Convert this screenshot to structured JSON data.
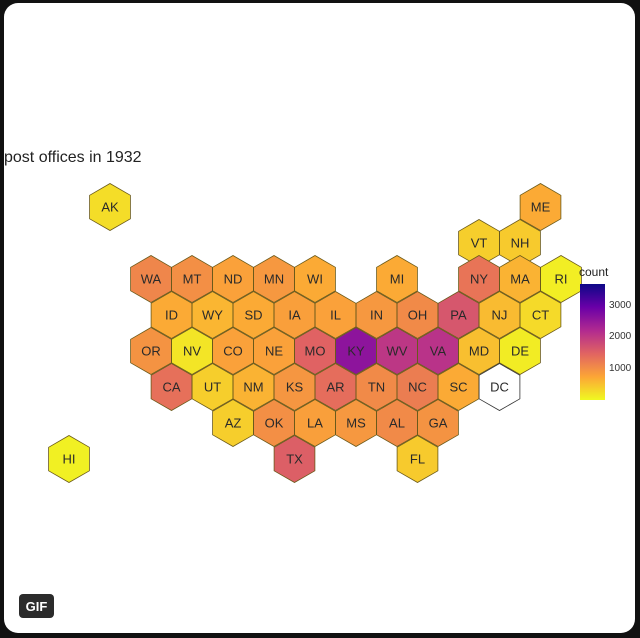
{
  "chart_data": {
    "type": "heatmap",
    "subtype": "hex-tile-map",
    "title": "post offices in 1932",
    "legend": {
      "title": "count",
      "ticks": [
        "3000",
        "2000",
        "1000"
      ],
      "tick_values": [
        3000,
        2000,
        1000
      ],
      "range": [
        0,
        3700
      ],
      "colors": [
        "#f0f921",
        "#fca636",
        "#e16462",
        "#b12a90",
        "#6a00a8",
        "#0d0887"
      ]
    },
    "states": [
      {
        "abbr": "AK",
        "row": 0,
        "col": 1.5,
        "value": 250
      },
      {
        "abbr": "ME",
        "row": 0,
        "col": 12,
        "value": 700
      },
      {
        "abbr": "VT",
        "row": 1,
        "col": 10.5,
        "value": 380
      },
      {
        "abbr": "NH",
        "row": 1,
        "col": 11.5,
        "value": 420
      },
      {
        "abbr": "WA",
        "row": 2,
        "col": 2.5,
        "value": 1100
      },
      {
        "abbr": "MT",
        "row": 2,
        "col": 3.5,
        "value": 1000
      },
      {
        "abbr": "ND",
        "row": 2,
        "col": 4.5,
        "value": 800
      },
      {
        "abbr": "MN",
        "row": 2,
        "col": 5.5,
        "value": 900
      },
      {
        "abbr": "WI",
        "row": 2,
        "col": 6.5,
        "value": 700
      },
      {
        "abbr": "MI",
        "row": 2,
        "col": 8.5,
        "value": 700
      },
      {
        "abbr": "NY",
        "row": 2,
        "col": 10.5,
        "value": 1300
      },
      {
        "abbr": "MA",
        "row": 2,
        "col": 11.5,
        "value": 620
      },
      {
        "abbr": "RI",
        "row": 2,
        "col": 12.5,
        "value": 100
      },
      {
        "abbr": "ID",
        "row": 3,
        "col": 3,
        "value": 700
      },
      {
        "abbr": "WY",
        "row": 3,
        "col": 4,
        "value": 600
      },
      {
        "abbr": "SD",
        "row": 3,
        "col": 5,
        "value": 700
      },
      {
        "abbr": "IA",
        "row": 3,
        "col": 6,
        "value": 820
      },
      {
        "abbr": "IL",
        "row": 3,
        "col": 7,
        "value": 800
      },
      {
        "abbr": "IN",
        "row": 3,
        "col": 8,
        "value": 900
      },
      {
        "abbr": "OH",
        "row": 3,
        "col": 9,
        "value": 1050
      },
      {
        "abbr": "PA",
        "row": 3,
        "col": 10,
        "value": 1650
      },
      {
        "abbr": "NJ",
        "row": 3,
        "col": 11,
        "value": 550
      },
      {
        "abbr": "CT",
        "row": 3,
        "col": 12,
        "value": 280
      },
      {
        "abbr": "OR",
        "row": 4,
        "col": 2.5,
        "value": 950
      },
      {
        "abbr": "NV",
        "row": 4,
        "col": 3.5,
        "value": 180
      },
      {
        "abbr": "CO",
        "row": 4,
        "col": 4.5,
        "value": 800
      },
      {
        "abbr": "NE",
        "row": 4,
        "col": 5.5,
        "value": 800
      },
      {
        "abbr": "MO",
        "row": 4,
        "col": 6.5,
        "value": 1500
      },
      {
        "abbr": "KY",
        "row": 4,
        "col": 7.5,
        "value": 2600
      },
      {
        "abbr": "WV",
        "row": 4,
        "col": 8.5,
        "value": 2050
      },
      {
        "abbr": "VA",
        "row": 4,
        "col": 9.5,
        "value": 2100
      },
      {
        "abbr": "MD",
        "row": 4,
        "col": 10.5,
        "value": 520
      },
      {
        "abbr": "DE",
        "row": 4,
        "col": 11.5,
        "value": 120
      },
      {
        "abbr": "CA",
        "row": 5,
        "col": 3,
        "value": 1350
      },
      {
        "abbr": "UT",
        "row": 5,
        "col": 4,
        "value": 380
      },
      {
        "abbr": "NM",
        "row": 5,
        "col": 5,
        "value": 620
      },
      {
        "abbr": "KS",
        "row": 5,
        "col": 6,
        "value": 920
      },
      {
        "abbr": "AR",
        "row": 5,
        "col": 7,
        "value": 1380
      },
      {
        "abbr": "TN",
        "row": 5,
        "col": 8,
        "value": 1050
      },
      {
        "abbr": "NC",
        "row": 5,
        "col": 9,
        "value": 1200
      },
      {
        "abbr": "SC",
        "row": 5,
        "col": 10,
        "value": 700
      },
      {
        "abbr": "DC",
        "row": 5,
        "col": 11,
        "value": 0
      },
      {
        "abbr": "AZ",
        "row": 6,
        "col": 4.5,
        "value": 380
      },
      {
        "abbr": "OK",
        "row": 6,
        "col": 5.5,
        "value": 1000
      },
      {
        "abbr": "LA",
        "row": 6,
        "col": 6.5,
        "value": 820
      },
      {
        "abbr": "MS",
        "row": 6,
        "col": 7.5,
        "value": 900
      },
      {
        "abbr": "AL",
        "row": 6,
        "col": 8.5,
        "value": 1050
      },
      {
        "abbr": "GA",
        "row": 6,
        "col": 9.5,
        "value": 950
      },
      {
        "abbr": "HI",
        "row": 7,
        "col": 0.5,
        "value": 80
      },
      {
        "abbr": "TX",
        "row": 7,
        "col": 6,
        "value": 1550
      },
      {
        "abbr": "FL",
        "row": 7,
        "col": 9,
        "value": 420
      }
    ]
  },
  "badge": {
    "label": "GIF"
  }
}
